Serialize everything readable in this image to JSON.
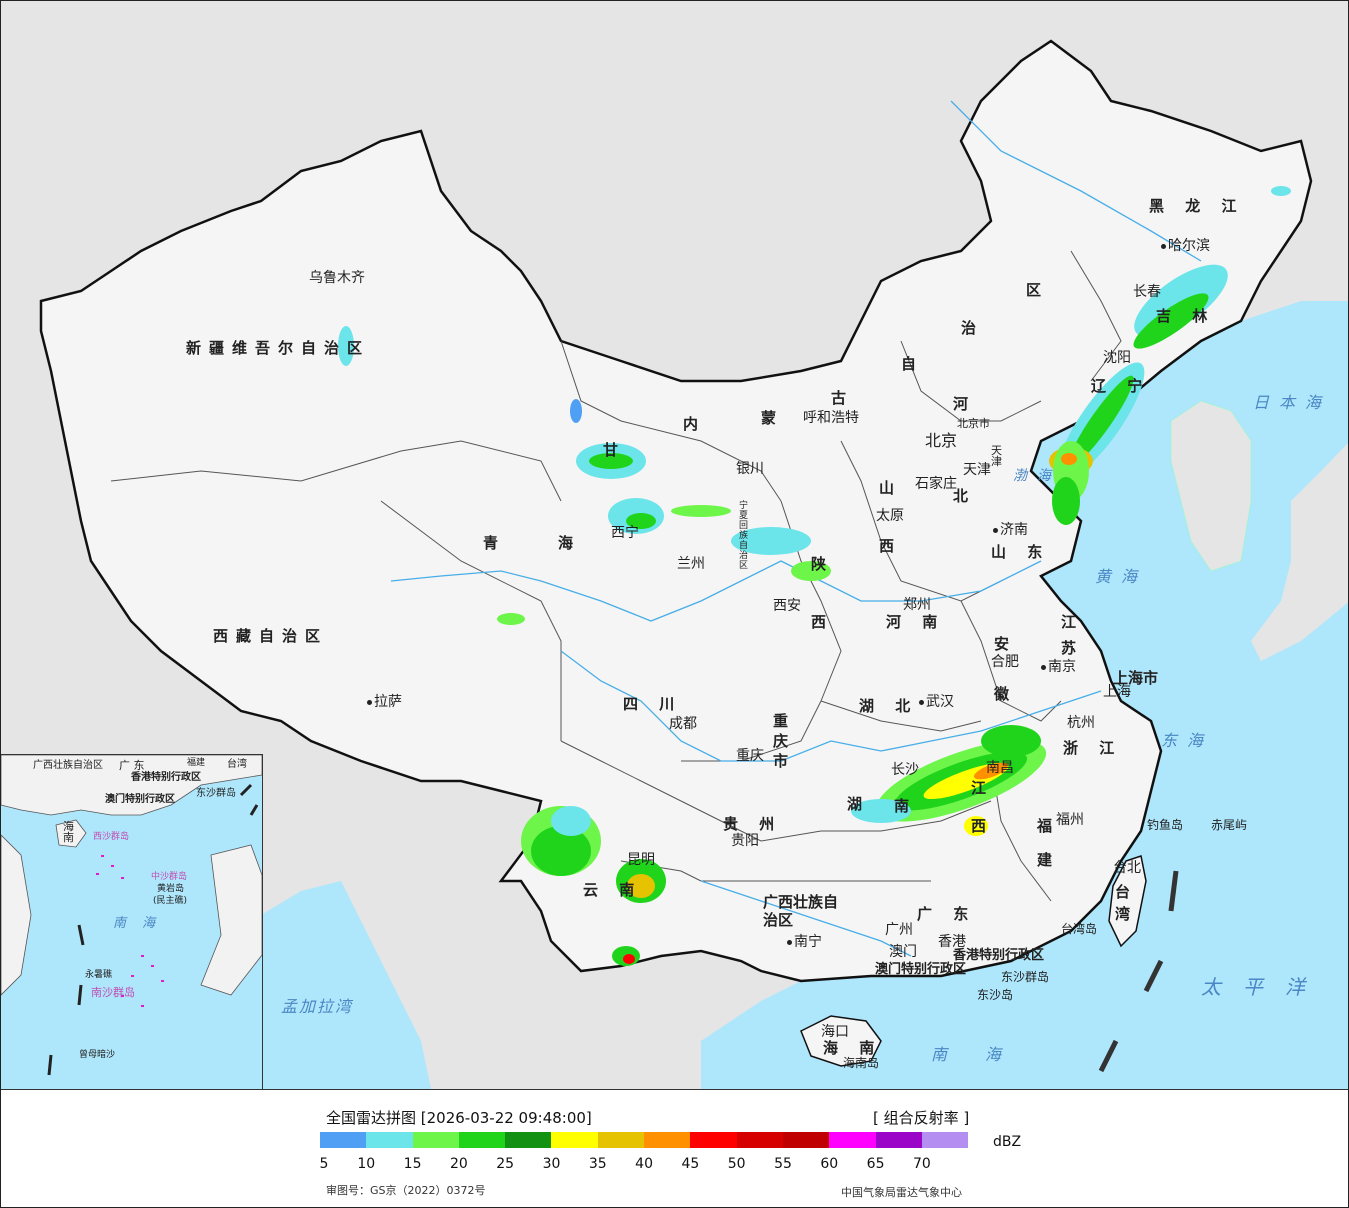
{
  "legend": {
    "title": "全国雷达拼图 [2026-03-22 09:48:00]",
    "product": "[ 组合反射率 ]",
    "unit": "dBZ",
    "colors": [
      "#4fa0f5",
      "#6be4ea",
      "#6ef54a",
      "#20d41c",
      "#139113",
      "#ffff00",
      "#e6c300",
      "#ff9000",
      "#ff0000",
      "#d60000",
      "#c00000",
      "#ff00ff",
      "#9a05c8",
      "#b48ef0"
    ],
    "ticks": [
      "5",
      "10",
      "15",
      "20",
      "25",
      "30",
      "35",
      "40",
      "45",
      "50",
      "55",
      "60",
      "65",
      "70"
    ],
    "approval": "审图号：GS京（2022）0372号",
    "source": "中国气象局雷达气象中心"
  },
  "provinces": {
    "heilongjiang": "黑 龙 江",
    "jilin": "吉 林",
    "liaoning": "辽 宁",
    "neimenggu_1": "内",
    "neimenggu_2": "蒙",
    "neimenggu_3": "古",
    "neimenggu_4": "自",
    "neimenggu_5": "治",
    "neimenggu_6": "区",
    "xinjiang": "新疆维吾尔自治区",
    "xizang": "西藏自治区",
    "qinghai_1": "青",
    "qinghai_2": "海",
    "gansu": "甘",
    "ningxia": "宁夏回族自治区",
    "shaanxi_1": "陕",
    "shaanxi_2": "西",
    "shanxi_1": "山",
    "shanxi_2": "西",
    "hebei_1": "河",
    "hebei_2": "北",
    "shandong": "山 东",
    "henan": "河 南",
    "jiangsu_1": "江",
    "jiangsu_2": "苏",
    "anhui_1": "安",
    "anhui_2": "徽",
    "shanghai": "上海市",
    "zhejiang": "浙 江",
    "hubei": "湖 北",
    "hunan_1": "湖",
    "hunan_2": "南",
    "jiangxi_1": "江",
    "jiangxi_2": "西",
    "fujian_1": "福",
    "fujian_2": "建",
    "sichuan": "四 川",
    "chongqing": "重庆市",
    "guizhou": "贵 州",
    "yunnan": "云 南",
    "guangxi": "广西壮族自治区",
    "guangdong": "广 东",
    "hainan": "海 南",
    "taiwan": "台湾",
    "beijing": "北京市",
    "tianjin": "天津",
    "hk": "香港特别行政区",
    "macau": "澳门特别行政区"
  },
  "cities": {
    "urumqi": "乌鲁木齐",
    "harbin": "哈尔滨",
    "changchun": "长春",
    "shenyang": "沈阳",
    "hohhot": "呼和浩特",
    "beijing": "北京",
    "tianjin": "天津",
    "shijiazhuang": "石家庄",
    "taiyuan": "太原",
    "jinan": "济南",
    "yinchuan": "银川",
    "xining": "西宁",
    "lanzhou": "兰州",
    "xian": "西安",
    "zhengzhou": "郑州",
    "hefei": "合肥",
    "nanjing": "南京",
    "shanghai": "上海",
    "hangzhou": "杭州",
    "wuhan": "武汉",
    "changsha": "长沙",
    "nanchang": "南昌",
    "fuzhou": "福州",
    "taipei": "台北",
    "chengdu": "成都",
    "chongqing": "重庆",
    "guiyang": "贵阳",
    "kunming": "昆明",
    "nanning": "南宁",
    "guangzhou": "广州",
    "hongkong": "香港",
    "macau": "澳门",
    "haikou": "海口",
    "lhasa": "拉萨"
  },
  "seas": {
    "japan_sea": "日本海",
    "bohai": "渤海",
    "yellow_sea": "黄海",
    "east_sea": "东海",
    "south_sea": "南海",
    "pacific": "太平洋",
    "bengal": "孟加拉湾"
  },
  "islands": {
    "diaoyu": "钓鱼岛",
    "chiwei": "赤尾屿",
    "taiwan_island": "台湾岛",
    "dongsha_qundao": "东沙群岛",
    "dongsha_dao": "东沙岛",
    "hainan_island": "海南岛"
  },
  "inset": {
    "guangxi": "广西壮族自治区",
    "guangdong": "广 东",
    "fujian": "福建",
    "taiwan": "台湾",
    "hk": "香港特别行政区",
    "macau": "澳门特别行政区",
    "dongsha": "东沙群岛",
    "hainan": "海 南",
    "xisha": "西沙群岛",
    "zhongsha": "中沙群岛",
    "huangyan": "黄岩岛",
    "minzhu": "(民主礁)",
    "south_sea": "南 海",
    "nansha": "南沙群岛",
    "yongshu": "永暑礁",
    "zengmu": "曾母暗沙"
  }
}
